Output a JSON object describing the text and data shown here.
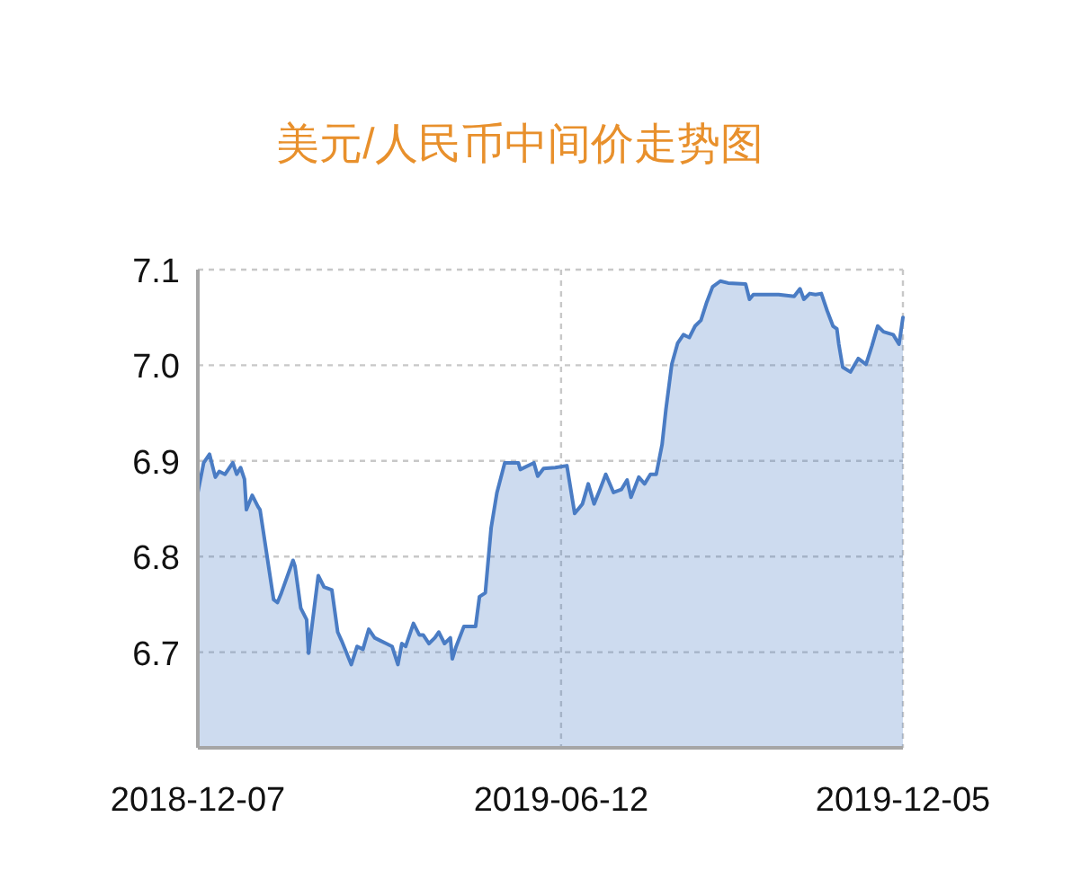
{
  "chart_data": {
    "type": "area",
    "title": "美元/人民币中间价走势图",
    "xlim": [
      "2018-12-07",
      "2019-12-05"
    ],
    "xticks": [
      "2018-12-07",
      "2019-06-12",
      "2019-12-05"
    ],
    "ylim": [
      6.6,
      7.1
    ],
    "yticks": [
      6.7,
      6.8,
      6.9,
      {
        "value": 7.0,
        "label": "7.0"
      },
      7.1
    ],
    "grid": true,
    "marker": "none",
    "series": [
      {
        "color": "#4a7cc4",
        "x": [
          "2018-12-07",
          "2018-12-10",
          "2018-12-13",
          "2018-12-16",
          "2018-12-18",
          "2018-12-21",
          "2018-12-25",
          "2018-12-27",
          "2018-12-29",
          "2018-12-31",
          "2019-01-01",
          "2019-01-04",
          "2019-01-07",
          "2019-01-08",
          "2019-01-15",
          "2019-01-17",
          "2019-01-19",
          "2019-01-25",
          "2019-01-26",
          "2019-01-29",
          "2019-02-01",
          "2019-02-02",
          "2019-02-07",
          "2019-02-10",
          "2019-02-14",
          "2019-02-17",
          "2019-02-19",
          "2019-02-24",
          "2019-02-27",
          "2019-03-02",
          "2019-03-05",
          "2019-03-08",
          "2019-03-11",
          "2019-03-14",
          "2019-03-17",
          "2019-03-20",
          "2019-03-22",
          "2019-03-24",
          "2019-03-28",
          "2019-03-31",
          "2019-04-02",
          "2019-04-05",
          "2019-04-08",
          "2019-04-10",
          "2019-04-13",
          "2019-04-16",
          "2019-04-17",
          "2019-04-19",
          "2019-04-23",
          "2019-04-29",
          "2019-05-01",
          "2019-05-04",
          "2019-05-07",
          "2019-05-10",
          "2019-05-14",
          "2019-05-21",
          "2019-05-22",
          "2019-05-29",
          "2019-05-31",
          "2019-06-03",
          "2019-06-09",
          "2019-06-15",
          "2019-06-19",
          "2019-06-23",
          "2019-06-26",
          "2019-06-29",
          "2019-07-02",
          "2019-07-05",
          "2019-07-09",
          "2019-07-13",
          "2019-07-16",
          "2019-07-18",
          "2019-07-22",
          "2019-07-25",
          "2019-07-28",
          "2019-07-31",
          "2019-08-03",
          "2019-08-05",
          "2019-08-08",
          "2019-08-11",
          "2019-08-14",
          "2019-08-17",
          "2019-08-20",
          "2019-08-23",
          "2019-08-26",
          "2019-08-29",
          "2019-09-02",
          "2019-09-06",
          "2019-09-15",
          "2019-09-17",
          "2019-09-19",
          "2019-10-02",
          "2019-10-10",
          "2019-10-13",
          "2019-10-15",
          "2019-10-18",
          "2019-10-21",
          "2019-10-24",
          "2019-10-27",
          "2019-10-30",
          "2019-11-01",
          "2019-11-02",
          "2019-11-04",
          "2019-11-08",
          "2019-11-12",
          "2019-11-16",
          "2019-11-19",
          "2019-11-22",
          "2019-11-25",
          "2019-11-30",
          "2019-12-03",
          "2019-12-05"
        ],
        "values": [
          6.867,
          6.898,
          6.907,
          6.883,
          6.889,
          6.886,
          6.898,
          6.886,
          6.893,
          6.881,
          6.849,
          6.864,
          6.852,
          6.849,
          6.755,
          6.752,
          6.762,
          6.796,
          6.79,
          6.746,
          6.734,
          6.699,
          6.78,
          6.768,
          6.765,
          6.721,
          6.712,
          6.687,
          6.706,
          6.703,
          6.724,
          6.715,
          6.712,
          6.709,
          6.706,
          6.687,
          6.709,
          6.706,
          6.73,
          6.718,
          6.718,
          6.709,
          6.715,
          6.721,
          6.709,
          6.715,
          6.693,
          6.706,
          6.727,
          6.727,
          6.758,
          6.762,
          6.83,
          6.867,
          6.898,
          6.898,
          6.891,
          6.898,
          6.884,
          6.892,
          6.893,
          6.895,
          6.845,
          6.855,
          6.876,
          6.855,
          6.87,
          6.886,
          6.867,
          6.87,
          6.88,
          6.862,
          6.883,
          6.876,
          6.886,
          6.886,
          6.917,
          6.954,
          7.001,
          7.023,
          7.032,
          7.029,
          7.041,
          7.047,
          7.066,
          7.082,
          7.088,
          7.086,
          7.085,
          7.069,
          7.074,
          7.074,
          7.072,
          7.08,
          7.069,
          7.075,
          7.074,
          7.075,
          7.057,
          7.041,
          7.038,
          7.022,
          6.998,
          6.993,
          7.007,
          7.001,
          7.02,
          7.041,
          7.035,
          7.032,
          7.022,
          7.05
        ]
      }
    ]
  }
}
